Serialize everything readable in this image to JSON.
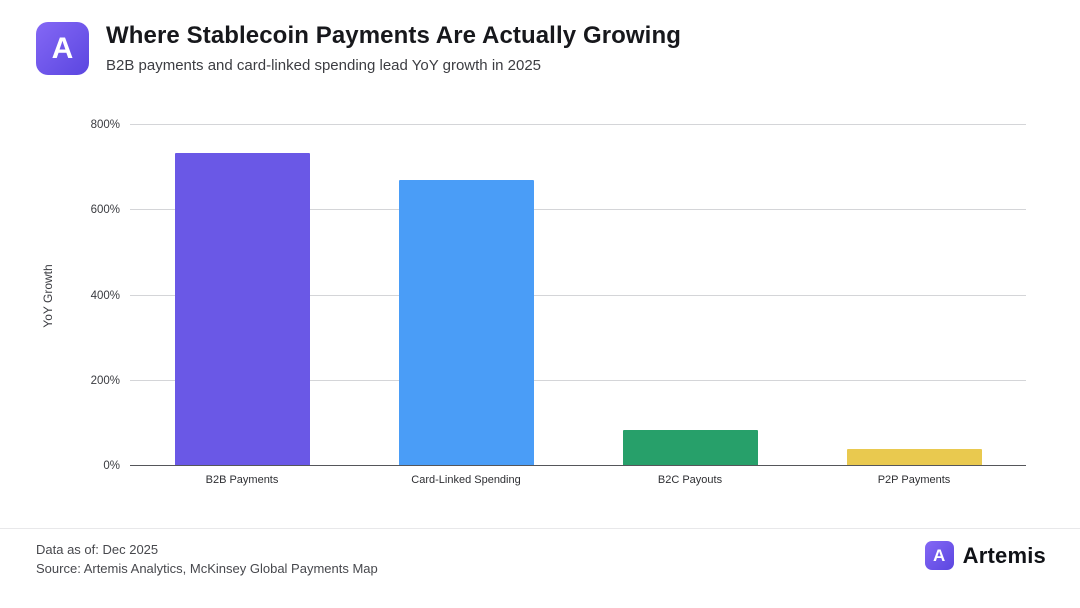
{
  "header": {
    "title": "Where Stablecoin Payments Are Actually Growing",
    "subtitle": "B2B payments and card-linked spending lead YoY growth in 2025",
    "logo_letter": "A"
  },
  "chart_data": {
    "type": "bar",
    "title": "Where Stablecoin Payments Are Actually Growing",
    "subtitle": "B2B payments and card-linked spending lead YoY growth in 2025",
    "categories": [
      "B2B Payments",
      "Card-Linked Spending",
      "B2C Payouts",
      "P2P Payments"
    ],
    "values": [
      735,
      670,
      85,
      40
    ],
    "unit": "%",
    "bar_colors": [
      "#6a58e6",
      "#4a9df7",
      "#27a06a",
      "#e9c94f"
    ],
    "xlabel": "",
    "ylabel": "YoY Growth",
    "ylim": [
      0,
      800
    ],
    "yticks": [
      0,
      200,
      400,
      600,
      800
    ],
    "ytick_labels": [
      "0%",
      "200%",
      "400%",
      "600%",
      "800%"
    ],
    "grid": true,
    "legend": false
  },
  "footer": {
    "data_as_of": "Data as of: Dec 2025",
    "source": "Source: Artemis Analytics, McKinsey Global Payments Map",
    "brand_name": "Artemis",
    "brand_letter": "A"
  },
  "colors": {
    "accent_purple": "#6a58e6",
    "accent_blue": "#4a9df7",
    "accent_green": "#27a06a",
    "accent_yellow": "#e9c94f"
  }
}
